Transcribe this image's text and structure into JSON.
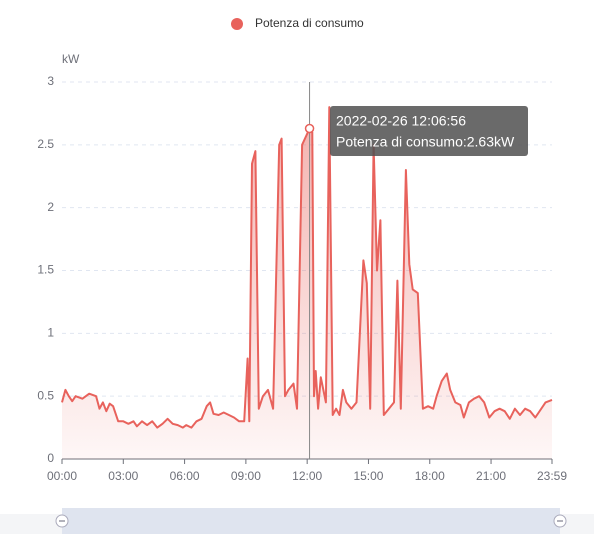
{
  "chart_data": {
    "type": "line",
    "legend": "Potenza di consumo",
    "y_label": "kW",
    "color": "#e8625c",
    "x": [
      0,
      10,
      20,
      30,
      40,
      60,
      80,
      100,
      110,
      120,
      130,
      140,
      150,
      165,
      180,
      195,
      210,
      220,
      235,
      250,
      265,
      280,
      295,
      310,
      325,
      340,
      355,
      365,
      380,
      395,
      410,
      425,
      435,
      445,
      460,
      475,
      490,
      505,
      520,
      535,
      545,
      550,
      558,
      568,
      578,
      590,
      605,
      620,
      638,
      645,
      655,
      665,
      680,
      690,
      705,
      727,
      735,
      740,
      745,
      752,
      760,
      775,
      785,
      795,
      805,
      815,
      825,
      835,
      850,
      865,
      885,
      895,
      905,
      915,
      925,
      935,
      945,
      960,
      975,
      985,
      995,
      1010,
      1020,
      1030,
      1045,
      1060,
      1075,
      1090,
      1100,
      1115,
      1130,
      1140,
      1155,
      1170,
      1180,
      1195,
      1210,
      1225,
      1240,
      1255,
      1270,
      1285,
      1300,
      1315,
      1330,
      1345,
      1360,
      1375,
      1390,
      1400,
      1420,
      1439
    ],
    "values": [
      0.45,
      0.55,
      0.5,
      0.46,
      0.5,
      0.48,
      0.52,
      0.5,
      0.4,
      0.45,
      0.38,
      0.44,
      0.42,
      0.3,
      0.3,
      0.28,
      0.3,
      0.26,
      0.3,
      0.27,
      0.3,
      0.25,
      0.28,
      0.32,
      0.28,
      0.27,
      0.25,
      0.27,
      0.25,
      0.3,
      0.32,
      0.42,
      0.45,
      0.36,
      0.35,
      0.37,
      0.35,
      0.33,
      0.3,
      0.3,
      0.8,
      0.3,
      2.35,
      2.45,
      0.4,
      0.5,
      0.55,
      0.4,
      2.5,
      2.55,
      0.5,
      0.55,
      0.6,
      0.4,
      2.5,
      2.63,
      2.6,
      0.5,
      0.7,
      0.4,
      0.65,
      0.45,
      2.8,
      0.35,
      0.4,
      0.35,
      0.55,
      0.45,
      0.4,
      0.45,
      1.58,
      1.4,
      0.4,
      2.5,
      1.5,
      1.9,
      0.35,
      0.4,
      0.45,
      1.42,
      0.4,
      2.3,
      1.55,
      1.35,
      1.32,
      0.4,
      0.42,
      0.4,
      0.5,
      0.62,
      0.68,
      0.55,
      0.45,
      0.43,
      0.33,
      0.45,
      0.48,
      0.5,
      0.45,
      0.33,
      0.38,
      0.4,
      0.38,
      0.32,
      0.4,
      0.35,
      0.4,
      0.38,
      0.33,
      0.37,
      0.45,
      0.47
    ],
    "xlim": [
      0,
      1439
    ],
    "xticks": [
      {
        "value": 0,
        "label": "00:00"
      },
      {
        "value": 180,
        "label": "03:00"
      },
      {
        "value": 360,
        "label": "06:00"
      },
      {
        "value": 540,
        "label": "09:00"
      },
      {
        "value": 720,
        "label": "12:00"
      },
      {
        "value": 900,
        "label": "15:00"
      },
      {
        "value": 1080,
        "label": "18:00"
      },
      {
        "value": 1260,
        "label": "21:00"
      },
      {
        "value": 1439,
        "label": "23:59"
      }
    ],
    "ylim": [
      0,
      3
    ],
    "yticks": [
      0,
      0.5,
      1,
      1.5,
      2,
      2.5,
      3
    ],
    "grid": true,
    "tooltip": {
      "title": "2022-02-26 12:06:56",
      "text": "Potenza di consumo:2.63kW",
      "x": 727,
      "value": 2.63
    }
  }
}
